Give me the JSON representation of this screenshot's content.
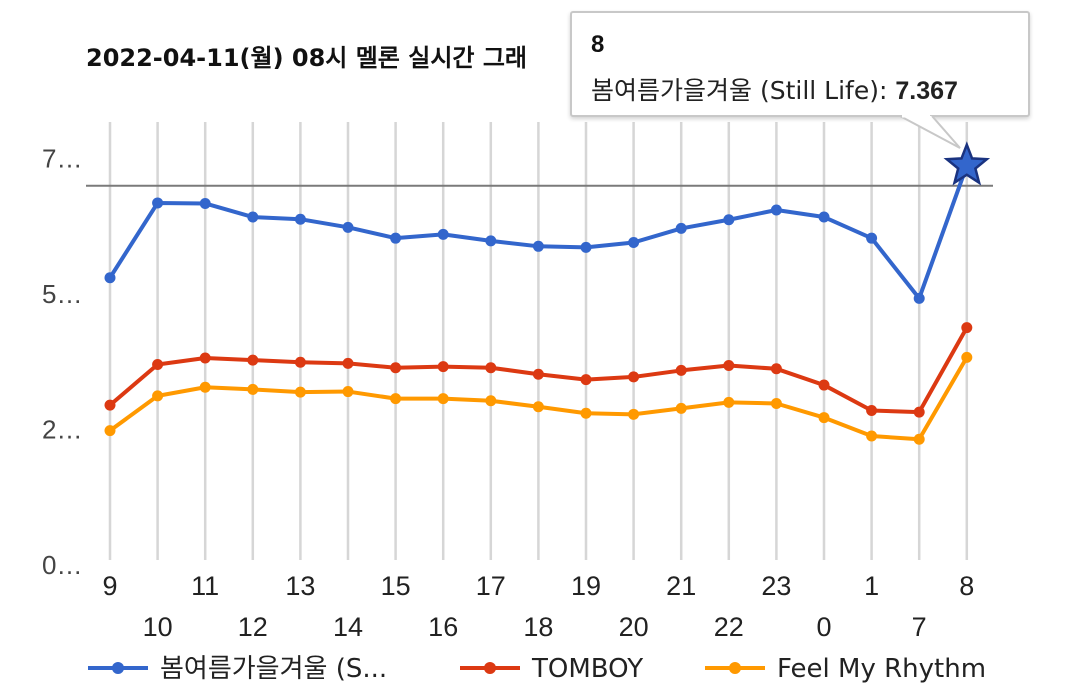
{
  "chart_data": {
    "type": "line",
    "title": "2022-04-11(월) 08시 멜론 실시간 그래",
    "categories": [
      "9",
      "10",
      "11",
      "12",
      "13",
      "14",
      "15",
      "16",
      "17",
      "18",
      "19",
      "20",
      "21",
      "22",
      "23",
      "0",
      "1",
      "7",
      "8"
    ],
    "y_tick_labels": [
      "0…",
      "2…",
      "5…",
      "7…"
    ],
    "y_ticks": [
      0,
      2.5,
      5,
      7.5
    ],
    "ylim": [
      0,
      8
    ],
    "grid": true,
    "legend_position": "bottom",
    "series": [
      {
        "name": "봄여름가을겨울 (S...",
        "color": "#3366cc",
        "values": [
          5.3,
          6.68,
          6.67,
          6.42,
          6.38,
          6.23,
          6.03,
          6.1,
          5.98,
          5.88,
          5.86,
          5.95,
          6.21,
          6.37,
          6.55,
          6.42,
          6.03,
          4.92,
          7.367
        ]
      },
      {
        "name": "TOMBOY",
        "color": "#dc3912",
        "values": [
          2.95,
          3.7,
          3.82,
          3.78,
          3.74,
          3.72,
          3.64,
          3.66,
          3.64,
          3.52,
          3.42,
          3.47,
          3.59,
          3.68,
          3.62,
          3.32,
          2.85,
          2.82,
          4.38
        ]
      },
      {
        "name": "Feel My Rhythm",
        "color": "#ff9900",
        "values": [
          2.48,
          3.12,
          3.28,
          3.24,
          3.19,
          3.2,
          3.07,
          3.07,
          3.03,
          2.92,
          2.8,
          2.78,
          2.89,
          3.0,
          2.98,
          2.72,
          2.38,
          2.32,
          3.83
        ]
      }
    ],
    "highlight_line": 7.367,
    "tooltip": {
      "category": "8",
      "series": "봄여름가을겨울 (Still Life):",
      "value": "7.367"
    }
  }
}
